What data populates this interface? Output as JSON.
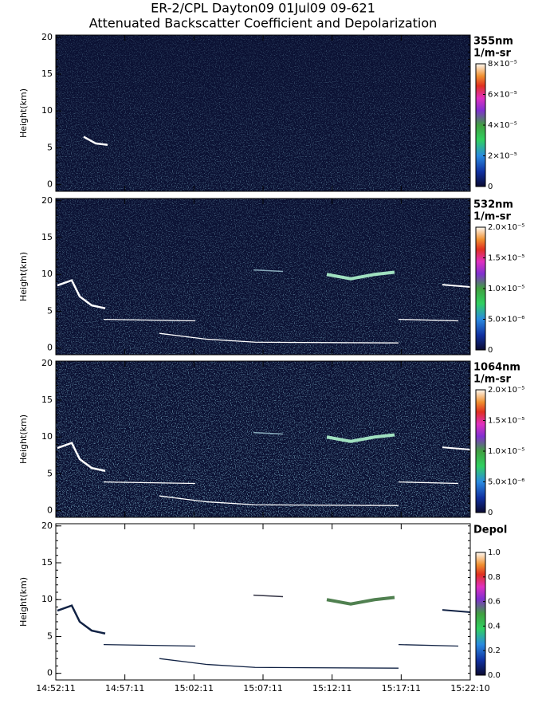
{
  "title": "ER-2/CPL Dayton09 01Jul09 09-621",
  "subtitle": "Attenuated Backscatter Coefficient and Depolarization",
  "chart_data": [
    {
      "type": "heatmap",
      "ylabel": "Height(km)",
      "ylim": [
        -0.9,
        20.3
      ],
      "yticks": [
        0,
        5,
        10,
        15,
        20
      ],
      "colorbar": {
        "label": [
          "355nm",
          "1/m-sr"
        ],
        "lim": [
          0,
          8e-05
        ],
        "ticks": [
          0,
          {
            "value": 2e-05,
            "label": "2×10⁻⁵"
          },
          {
            "value": 4e-05,
            "label": "4×10⁻⁵"
          },
          {
            "value": 6e-05,
            "label": "6×10⁻⁵"
          },
          {
            "value": 8e-05,
            "label": "8×10⁻⁵"
          }
        ]
      }
    },
    {
      "type": "heatmap",
      "ylabel": "Height(km)",
      "ylim": [
        -0.9,
        20.3
      ],
      "yticks": [
        0,
        5,
        10,
        15,
        20
      ],
      "colorbar": {
        "label": [
          "532nm",
          "1/m-sr"
        ],
        "lim": [
          0,
          2e-05
        ],
        "ticks": [
          0,
          {
            "value": 5e-06,
            "label": "5.0×10⁻⁶"
          },
          {
            "value": 1e-05,
            "label": "1.0×10⁻⁵"
          },
          {
            "value": 1.5e-05,
            "label": "1.5×10⁻⁵"
          },
          {
            "value": 2e-05,
            "label": "2.0×10⁻⁵"
          }
        ]
      }
    },
    {
      "type": "heatmap",
      "ylabel": "Height(km)",
      "ylim": [
        -0.9,
        20.3
      ],
      "yticks": [
        0,
        5,
        10,
        15,
        20
      ],
      "colorbar": {
        "label": [
          "1064nm",
          "1/m-sr"
        ],
        "lim": [
          0,
          2e-05
        ],
        "ticks": [
          0,
          {
            "value": 5e-06,
            "label": "5.0×10⁻⁶"
          },
          {
            "value": 1e-05,
            "label": "1.0×10⁻⁵"
          },
          {
            "value": 1.5e-05,
            "label": "1.5×10⁻⁵"
          },
          {
            "value": 2e-05,
            "label": "2.0×10⁻⁵"
          }
        ]
      }
    },
    {
      "type": "heatmap",
      "ylabel": "Height(km)",
      "ylim": [
        -0.9,
        20.3
      ],
      "yticks": [
        0,
        5,
        10,
        15,
        20
      ],
      "categories": [
        "14:52:11",
        "14:57:11",
        "15:02:11",
        "15:07:11",
        "15:12:11",
        "15:17:11",
        "15:22:10"
      ],
      "colorbar": {
        "label": [
          "Depol"
        ],
        "lim": [
          0,
          1
        ],
        "ticks": [
          {
            "value": 0,
            "label": "0.0"
          },
          0.2,
          0.4,
          0.6,
          0.8,
          {
            "value": 1,
            "label": "1.0"
          }
        ]
      }
    }
  ]
}
